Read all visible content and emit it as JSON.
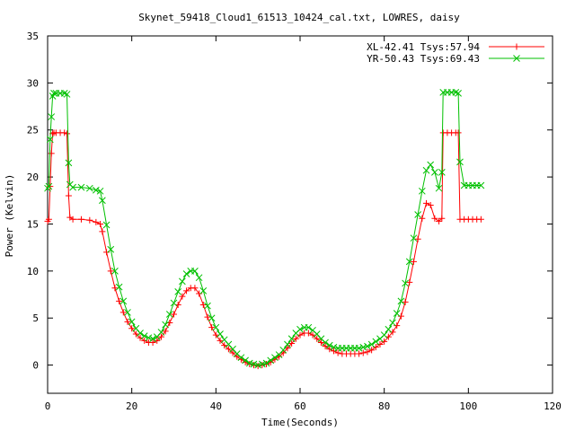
{
  "chart_data": {
    "type": "line",
    "title": "Skynet_59418_Cloud1_61513_10424_cal.txt, LOWRES, daisy",
    "xlabel": "Time(Seconds)",
    "ylabel": "Power (Kelvin)",
    "xlim": [
      0,
      120
    ],
    "ylim": [
      -3,
      35
    ],
    "xticks": [
      0,
      20,
      40,
      60,
      80,
      100,
      120
    ],
    "yticks": [
      0,
      5,
      10,
      15,
      20,
      25,
      30,
      35
    ],
    "grid": false,
    "legend_position": "top-right",
    "series": [
      {
        "name": "XL-42.41 Tsys:57.94",
        "color": "#ff0000",
        "marker": "plus",
        "x": [
          0.0,
          0.3,
          0.6,
          0.9,
          1.2,
          1.5,
          2,
          3,
          4,
          4.6,
          5.0,
          5.3,
          6,
          8,
          10,
          11.5,
          12.5,
          13,
          14,
          15,
          16,
          17,
          18,
          19,
          20,
          21,
          22,
          23,
          24,
          25,
          26,
          27,
          28,
          29,
          30,
          31,
          32,
          33,
          34,
          35,
          36,
          37,
          38,
          39,
          40,
          41,
          42,
          43,
          44,
          45,
          46,
          47,
          48,
          49,
          50,
          51,
          52,
          53,
          54,
          55,
          56,
          57,
          58,
          59,
          60,
          61,
          62,
          63,
          64,
          65,
          66,
          67,
          68,
          69,
          70,
          71,
          72,
          73,
          74,
          75,
          76,
          77,
          78,
          79,
          80,
          81,
          82,
          83,
          84,
          85,
          86,
          87,
          88,
          89,
          90,
          91,
          92,
          93,
          93.7,
          94.0,
          95,
          96,
          97,
          97.6,
          98.0,
          99,
          100,
          101,
          102,
          103
        ],
        "y": [
          15.3,
          15.5,
          19.0,
          22.5,
          24.6,
          24.7,
          24.7,
          24.7,
          24.7,
          24.6,
          18.0,
          15.7,
          15.5,
          15.5,
          15.4,
          15.2,
          15.0,
          14.2,
          12.0,
          10.0,
          8.2,
          6.8,
          5.6,
          4.6,
          3.9,
          3.3,
          2.9,
          2.6,
          2.4,
          2.4,
          2.6,
          3.0,
          3.6,
          4.5,
          5.4,
          6.4,
          7.3,
          7.9,
          8.2,
          8.2,
          7.6,
          6.4,
          5.1,
          4.0,
          3.2,
          2.6,
          2.1,
          1.7,
          1.3,
          0.9,
          0.6,
          0.3,
          0.1,
          0.0,
          -0.1,
          0.0,
          0.1,
          0.3,
          0.6,
          0.9,
          1.3,
          1.8,
          2.3,
          2.8,
          3.2,
          3.4,
          3.4,
          3.2,
          2.8,
          2.4,
          2.0,
          1.7,
          1.5,
          1.3,
          1.2,
          1.2,
          1.2,
          1.2,
          1.2,
          1.3,
          1.4,
          1.6,
          1.9,
          2.2,
          2.5,
          3.0,
          3.5,
          4.2,
          5.2,
          6.7,
          8.8,
          11.0,
          13.4,
          15.6,
          17.2,
          17.0,
          15.6,
          15.3,
          15.6,
          24.7,
          24.7,
          24.7,
          24.7,
          24.7,
          15.5,
          15.5,
          15.5,
          15.5,
          15.5,
          15.5
        ]
      },
      {
        "name": "YR-50.43 Tsys:69.43",
        "color": "#00c000",
        "marker": "x",
        "x": [
          0.0,
          0.3,
          0.6,
          0.9,
          1.2,
          1.5,
          2,
          3,
          4,
          4.6,
          5.0,
          5.3,
          6,
          8,
          10,
          11.5,
          12.5,
          13,
          14,
          15,
          16,
          17,
          18,
          19,
          20,
          21,
          22,
          23,
          24,
          25,
          26,
          27,
          28,
          29,
          30,
          31,
          32,
          33,
          34,
          35,
          36,
          37,
          38,
          39,
          40,
          41,
          42,
          43,
          44,
          45,
          46,
          47,
          48,
          49,
          50,
          51,
          52,
          53,
          54,
          55,
          56,
          57,
          58,
          59,
          60,
          61,
          62,
          63,
          64,
          65,
          66,
          67,
          68,
          69,
          70,
          71,
          72,
          73,
          74,
          75,
          76,
          77,
          78,
          79,
          80,
          81,
          82,
          83,
          84,
          85,
          86,
          87,
          88,
          89,
          90,
          91,
          92,
          93,
          93.7,
          94.0,
          95,
          96,
          97,
          97.6,
          98.0,
          99,
          100,
          101,
          102,
          103
        ],
        "y": [
          18.8,
          19.0,
          24.0,
          26.4,
          28.6,
          28.9,
          28.9,
          28.9,
          28.9,
          28.8,
          21.5,
          19.2,
          18.9,
          18.9,
          18.8,
          18.6,
          18.5,
          17.5,
          14.9,
          12.3,
          10.0,
          8.3,
          6.8,
          5.6,
          4.6,
          3.9,
          3.4,
          3.1,
          2.9,
          2.8,
          3.0,
          3.5,
          4.3,
          5.4,
          6.6,
          7.8,
          8.9,
          9.7,
          10.0,
          10.0,
          9.3,
          7.9,
          6.3,
          5.0,
          4.0,
          3.3,
          2.7,
          2.2,
          1.7,
          1.2,
          0.8,
          0.5,
          0.2,
          0.1,
          0.0,
          0.1,
          0.2,
          0.5,
          0.8,
          1.1,
          1.6,
          2.2,
          2.8,
          3.4,
          3.8,
          4.0,
          4.0,
          3.7,
          3.3,
          2.8,
          2.4,
          2.1,
          1.9,
          1.8,
          1.8,
          1.8,
          1.8,
          1.8,
          1.8,
          1.9,
          2.0,
          2.2,
          2.5,
          2.8,
          3.2,
          3.8,
          4.5,
          5.5,
          6.8,
          8.7,
          11.0,
          13.5,
          16.0,
          18.5,
          20.7,
          21.3,
          20.5,
          18.8,
          20.5,
          29.0,
          29.0,
          29.0,
          29.0,
          28.9,
          21.6,
          19.1,
          19.1,
          19.1,
          19.1,
          19.1
        ]
      }
    ]
  }
}
